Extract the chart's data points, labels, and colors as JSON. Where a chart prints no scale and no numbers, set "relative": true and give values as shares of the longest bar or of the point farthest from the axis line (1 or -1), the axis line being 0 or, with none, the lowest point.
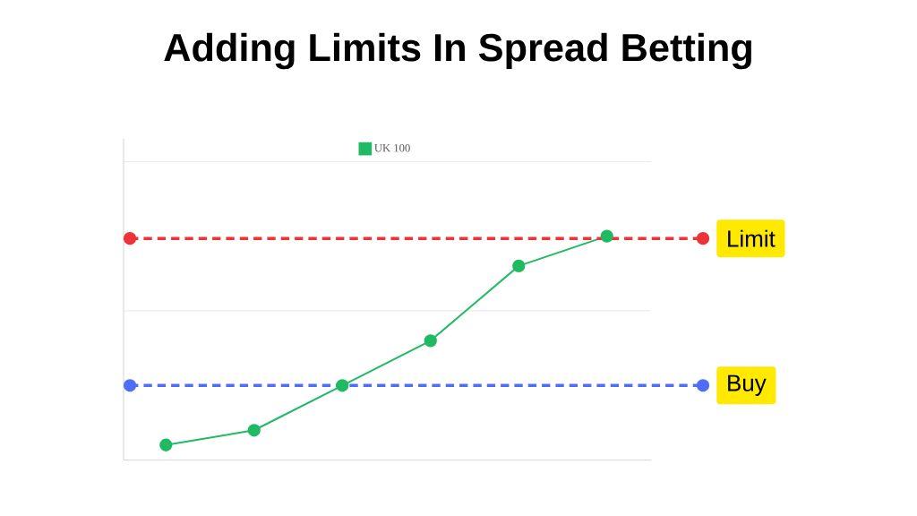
{
  "chart_data": {
    "type": "line",
    "title": "Adding Limits In Spread Betting",
    "relative": true,
    "categories": [
      null,
      null,
      null,
      null,
      null,
      null
    ],
    "series": [
      {
        "name": "UK 100",
        "color": "#1fba62",
        "values": [
          0.067,
          0.133,
          0.333,
          0.533,
          0.867,
          1
        ]
      }
    ],
    "marker": "circle",
    "line_style": "solid",
    "legend": "top",
    "ref_lines": [
      {
        "axis": "y",
        "value": 0.99,
        "label": "Limit",
        "color": "#ee3338",
        "line_style": "dashed"
      },
      {
        "axis": "y",
        "value": 0.333,
        "label": "Buy",
        "color": "#4f6ef7",
        "line_style": "dashed"
      },
      {
        "axis": "y",
        "value": 0.667,
        "color": "#ebebeb",
        "line_style": "solid"
      },
      {
        "axis": "y",
        "value": 1.333,
        "color": "#ebebeb",
        "line_style": "solid"
      }
    ]
  }
}
